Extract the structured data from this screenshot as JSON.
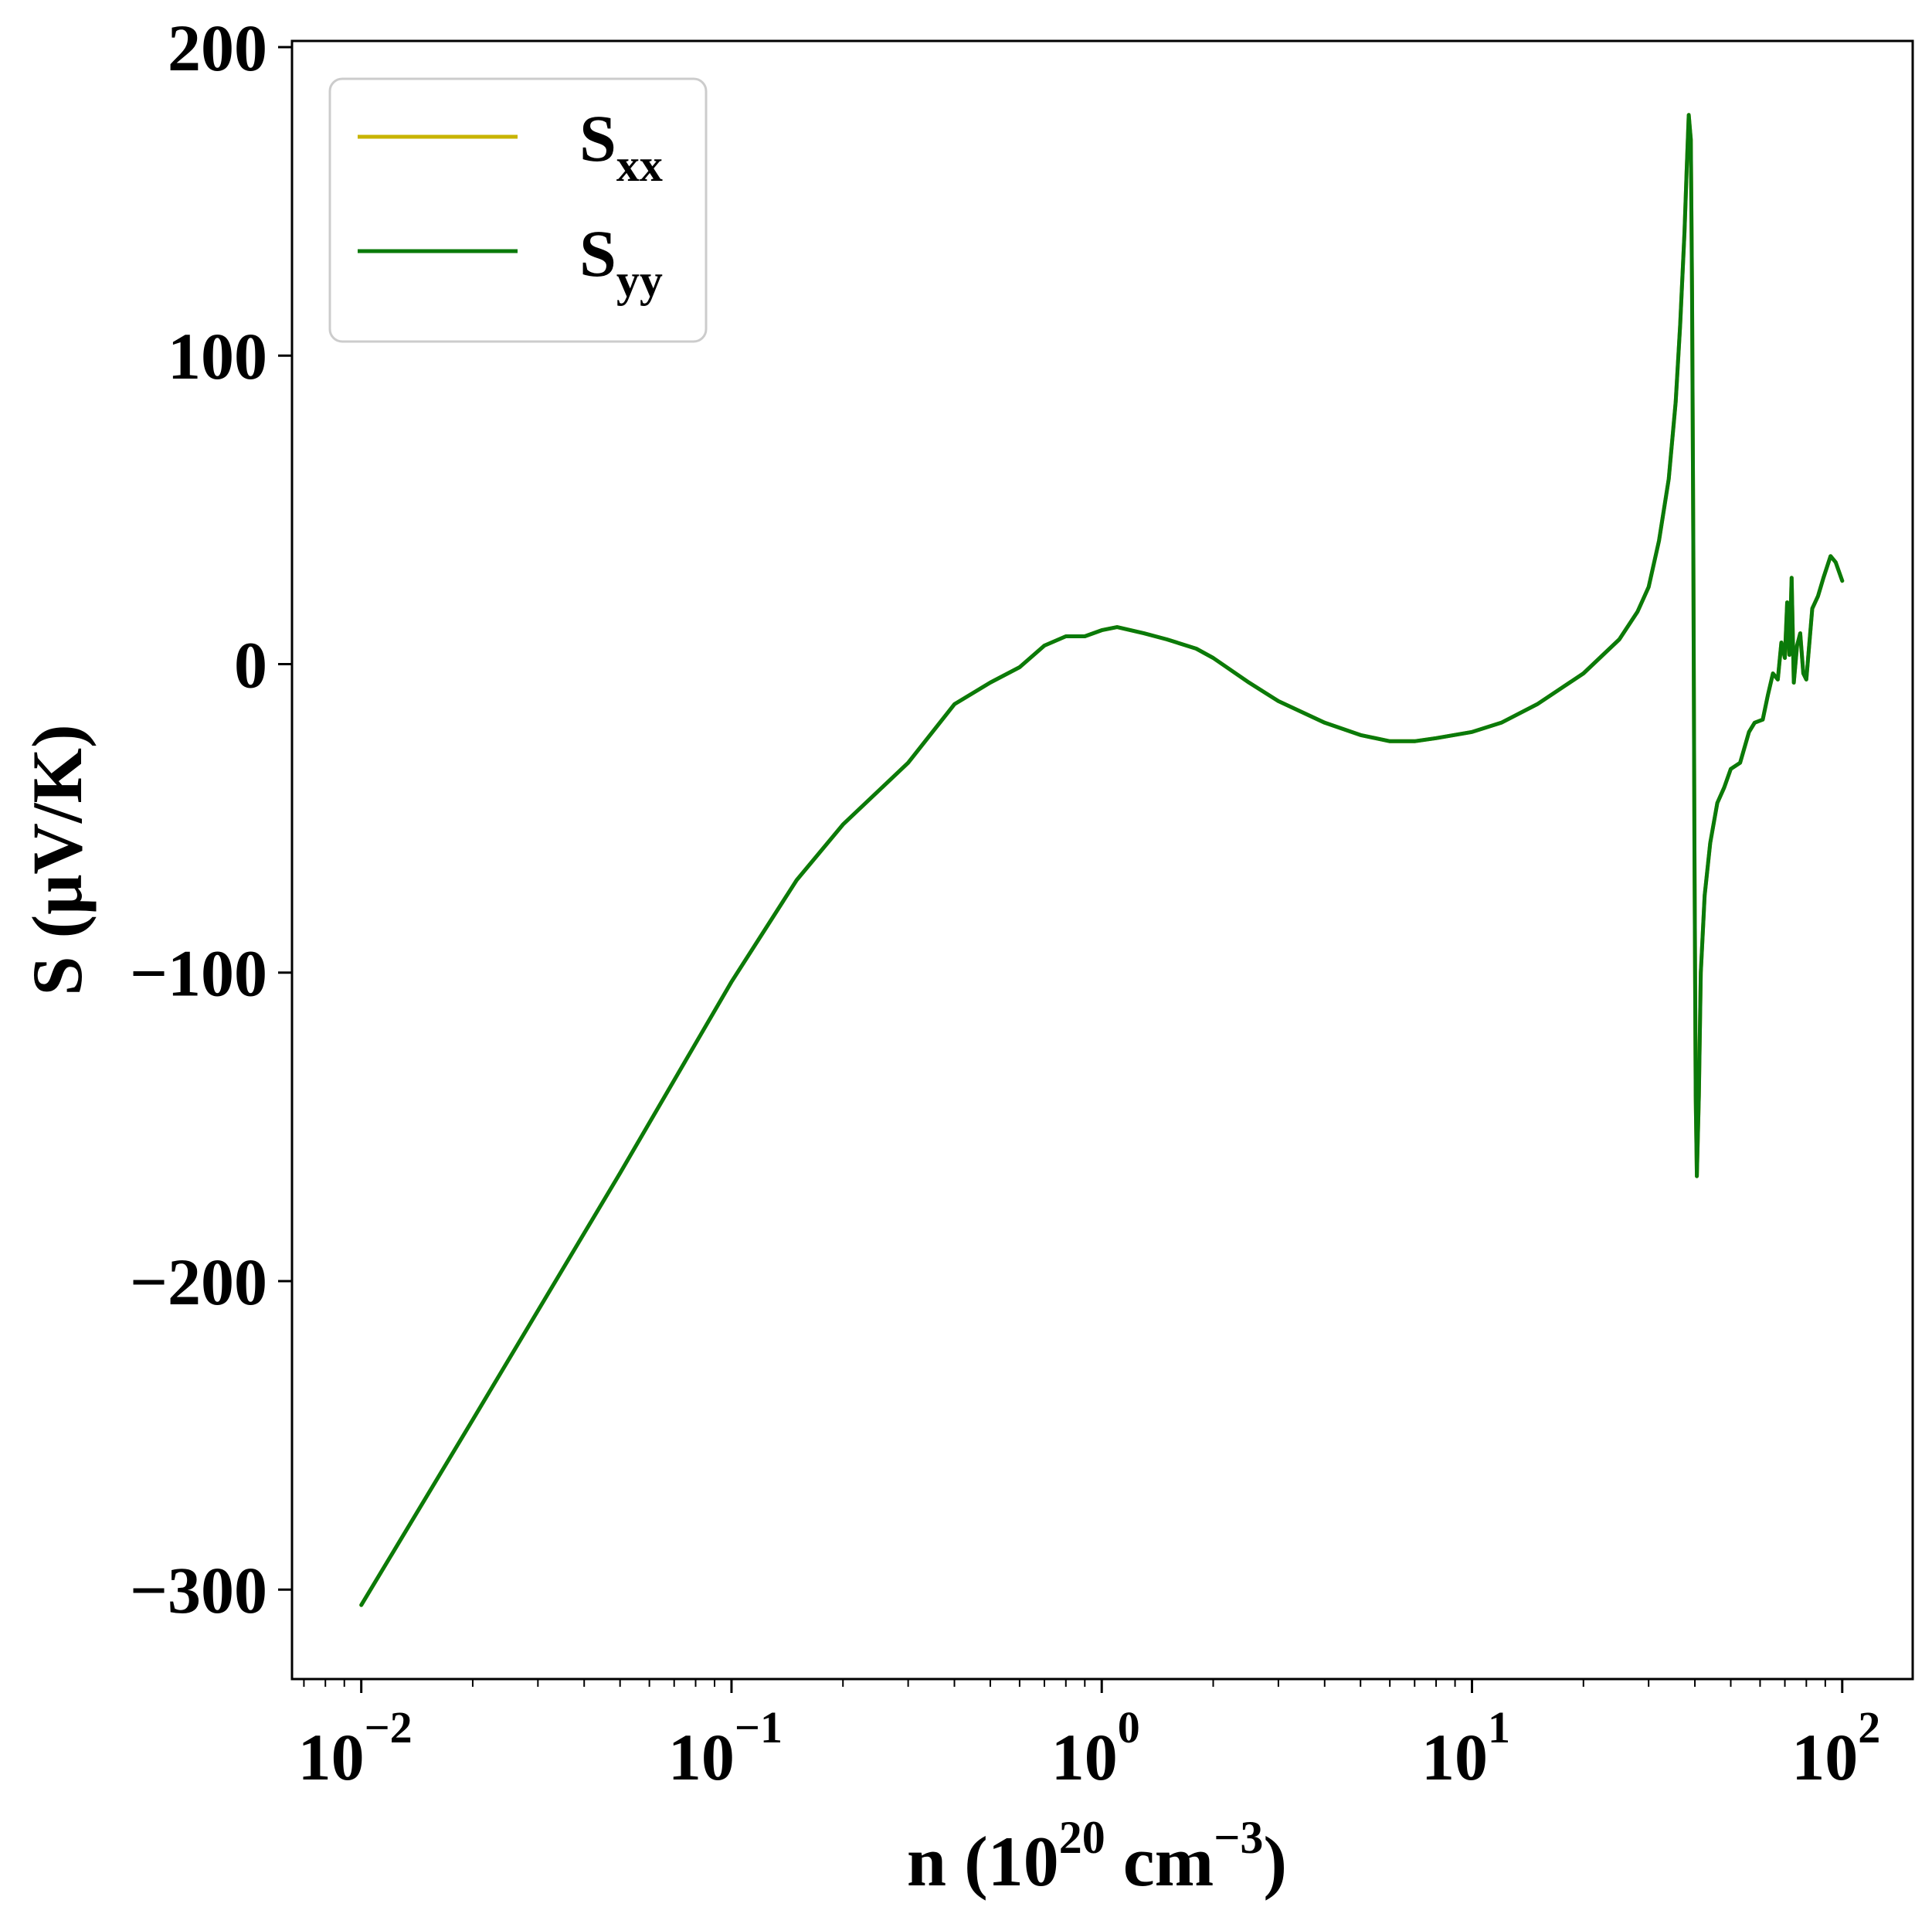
{
  "chart_data": {
    "type": "line",
    "xscale": "log",
    "xlim": [
      0.0065,
      155
    ],
    "ylim": [
      -329,
      202
    ],
    "xlabel": {
      "main": "n (10",
      "sup1": "20",
      "mid": " cm",
      "sup2": "−3",
      "end": ")"
    },
    "ylabel": "S (μV/K)",
    "x_ticks": [
      {
        "value": 0.01,
        "base": "10",
        "exp": "−2"
      },
      {
        "value": 0.1,
        "base": "10",
        "exp": "−1"
      },
      {
        "value": 1,
        "base": "10",
        "exp": "0"
      },
      {
        "value": 10,
        "base": "10",
        "exp": "1"
      },
      {
        "value": 100,
        "base": "10",
        "exp": "2"
      }
    ],
    "y_ticks": [
      {
        "value": 200,
        "label": "200"
      },
      {
        "value": 100,
        "label": "100"
      },
      {
        "value": 0,
        "label": "0"
      },
      {
        "value": -100,
        "label": "−100"
      },
      {
        "value": -200,
        "label": "−200"
      },
      {
        "value": -300,
        "label": "−300"
      }
    ],
    "legend_position": "upper-left",
    "grid": false,
    "series": [
      {
        "name": {
          "base": "S",
          "sub": "xx"
        },
        "color": "#c8b400",
        "points": [
          [
            0.01,
            -305
          ],
          [
            0.02,
            -245
          ],
          [
            0.05,
            -165
          ],
          [
            0.1,
            -103
          ],
          [
            0.15,
            -70
          ],
          [
            0.2,
            -52
          ],
          [
            0.3,
            -32
          ],
          [
            0.4,
            -13
          ],
          [
            0.5,
            -6
          ],
          [
            0.6,
            -1
          ],
          [
            0.7,
            6
          ],
          [
            0.8,
            9
          ],
          [
            0.9,
            9
          ],
          [
            1.0,
            11
          ],
          [
            1.1,
            12
          ],
          [
            1.3,
            10
          ],
          [
            1.5,
            8
          ],
          [
            1.8,
            5
          ],
          [
            2.0,
            2
          ],
          [
            2.5,
            -6
          ],
          [
            3.0,
            -12
          ],
          [
            4.0,
            -19
          ],
          [
            5.0,
            -23
          ],
          [
            6.0,
            -25
          ],
          [
            7.0,
            -25
          ],
          [
            8.0,
            -24
          ],
          [
            10.0,
            -22
          ],
          [
            12.0,
            -19
          ],
          [
            15.0,
            -13
          ],
          [
            20.0,
            -3
          ],
          [
            25.0,
            8
          ],
          [
            28.0,
            17
          ],
          [
            30.0,
            25
          ],
          [
            32.0,
            40
          ],
          [
            34.0,
            60
          ],
          [
            35.5,
            85
          ],
          [
            36.5,
            110
          ],
          [
            37.5,
            140
          ],
          [
            38.0,
            160
          ],
          [
            38.5,
            178
          ],
          [
            39.0,
            170
          ],
          [
            39.3,
            120
          ],
          [
            39.6,
            40
          ],
          [
            39.9,
            -60
          ],
          [
            40.2,
            -140
          ],
          [
            40.5,
            -166
          ],
          [
            41.0,
            -140
          ],
          [
            41.5,
            -100
          ],
          [
            42.5,
            -75
          ],
          [
            44.0,
            -58
          ],
          [
            46.0,
            -45
          ],
          [
            48.0,
            -40
          ],
          [
            50.0,
            -34
          ],
          [
            53.0,
            -32
          ],
          [
            56.0,
            -22
          ],
          [
            58.0,
            -19
          ],
          [
            61.0,
            -18
          ],
          [
            63.0,
            -10
          ],
          [
            65.0,
            -3
          ],
          [
            67.0,
            -5
          ],
          [
            68.5,
            7
          ],
          [
            70.0,
            2
          ],
          [
            71.0,
            20
          ],
          [
            72.0,
            3
          ],
          [
            73.0,
            28
          ],
          [
            74.0,
            -6
          ],
          [
            75.5,
            6
          ],
          [
            77.0,
            10
          ],
          [
            78.5,
            -3
          ],
          [
            80.0,
            -5
          ],
          [
            83.0,
            18
          ],
          [
            86.0,
            22
          ],
          [
            89.0,
            28
          ],
          [
            93.0,
            35
          ],
          [
            96.0,
            33
          ],
          [
            100.0,
            27
          ]
        ]
      },
      {
        "name": {
          "base": "S",
          "sub": "yy"
        },
        "color": "#0a7a0a",
        "points": [
          [
            0.01,
            -305
          ],
          [
            0.02,
            -245
          ],
          [
            0.05,
            -165
          ],
          [
            0.1,
            -103
          ],
          [
            0.15,
            -70
          ],
          [
            0.2,
            -52
          ],
          [
            0.3,
            -32
          ],
          [
            0.4,
            -13
          ],
          [
            0.5,
            -6
          ],
          [
            0.6,
            -1
          ],
          [
            0.7,
            6
          ],
          [
            0.8,
            9
          ],
          [
            0.9,
            9
          ],
          [
            1.0,
            11
          ],
          [
            1.1,
            12
          ],
          [
            1.3,
            10
          ],
          [
            1.5,
            8
          ],
          [
            1.8,
            5
          ],
          [
            2.0,
            2
          ],
          [
            2.5,
            -6
          ],
          [
            3.0,
            -12
          ],
          [
            4.0,
            -19
          ],
          [
            5.0,
            -23
          ],
          [
            6.0,
            -25
          ],
          [
            7.0,
            -25
          ],
          [
            8.0,
            -24
          ],
          [
            10.0,
            -22
          ],
          [
            12.0,
            -19
          ],
          [
            15.0,
            -13
          ],
          [
            20.0,
            -3
          ],
          [
            25.0,
            8
          ],
          [
            28.0,
            17
          ],
          [
            30.0,
            25
          ],
          [
            32.0,
            40
          ],
          [
            34.0,
            60
          ],
          [
            35.5,
            85
          ],
          [
            36.5,
            110
          ],
          [
            37.5,
            140
          ],
          [
            38.0,
            160
          ],
          [
            38.5,
            178
          ],
          [
            39.0,
            170
          ],
          [
            39.3,
            120
          ],
          [
            39.6,
            40
          ],
          [
            39.9,
            -60
          ],
          [
            40.2,
            -140
          ],
          [
            40.5,
            -166
          ],
          [
            41.0,
            -140
          ],
          [
            41.5,
            -100
          ],
          [
            42.5,
            -75
          ],
          [
            44.0,
            -58
          ],
          [
            46.0,
            -45
          ],
          [
            48.0,
            -40
          ],
          [
            50.0,
            -34
          ],
          [
            53.0,
            -32
          ],
          [
            56.0,
            -22
          ],
          [
            58.0,
            -19
          ],
          [
            61.0,
            -18
          ],
          [
            63.0,
            -10
          ],
          [
            65.0,
            -3
          ],
          [
            67.0,
            -5
          ],
          [
            68.5,
            7
          ],
          [
            70.0,
            2
          ],
          [
            71.0,
            20
          ],
          [
            72.0,
            3
          ],
          [
            73.0,
            28
          ],
          [
            74.0,
            -6
          ],
          [
            75.5,
            6
          ],
          [
            77.0,
            10
          ],
          [
            78.5,
            -3
          ],
          [
            80.0,
            -5
          ],
          [
            83.0,
            18
          ],
          [
            86.0,
            22
          ],
          [
            89.0,
            28
          ],
          [
            93.0,
            35
          ],
          [
            96.0,
            33
          ],
          [
            100.0,
            27
          ]
        ]
      }
    ]
  }
}
